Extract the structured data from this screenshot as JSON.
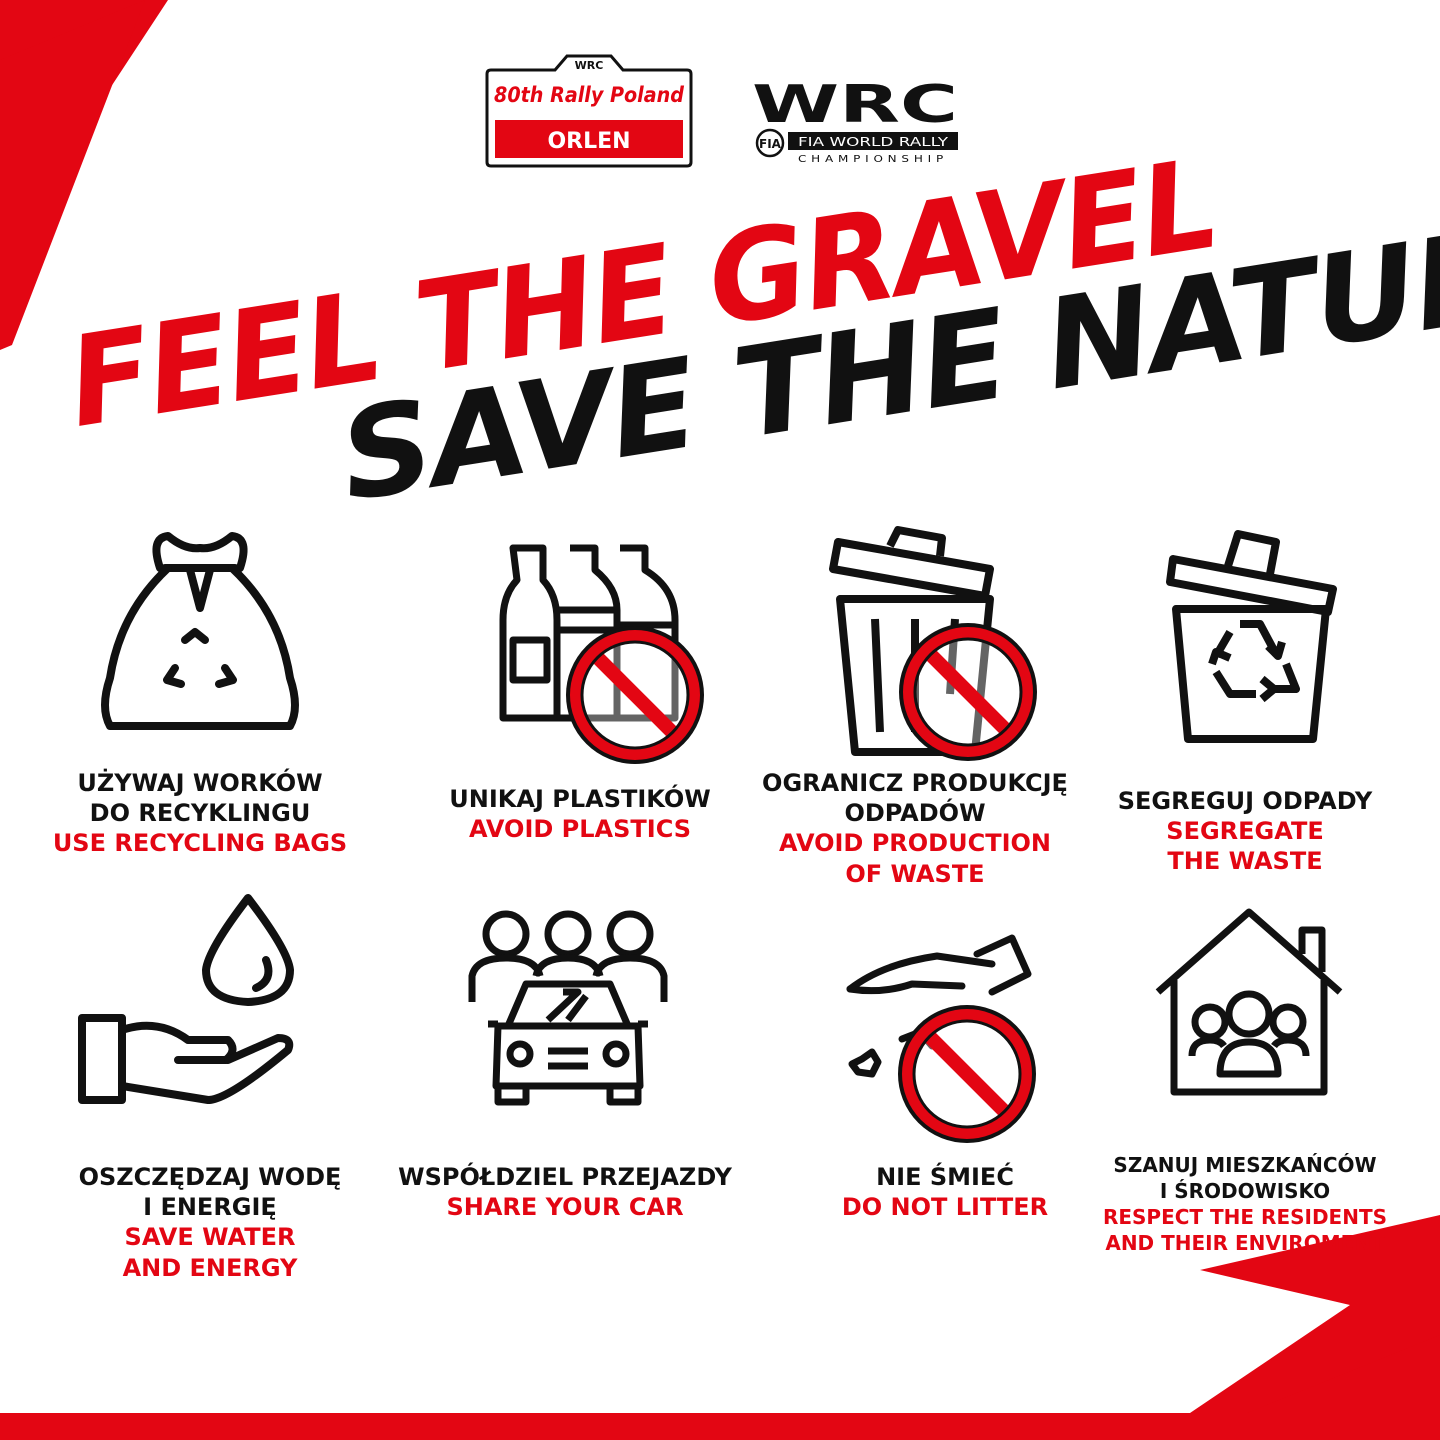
{
  "colors": {
    "accent": "#e30613",
    "ink": "#111111",
    "background": "#ffffff"
  },
  "logos": {
    "rally": {
      "badge": "WRC",
      "line1": "80th Rally Poland",
      "line2": "ORLEN"
    },
    "wrc": {
      "mark": "WRC",
      "tagline1": "FIA WORLD RALLY",
      "tagline2": "CHAMPIONSHIP",
      "fia": "FIA"
    }
  },
  "headline": {
    "line1": "FEEL THE GRAVEL",
    "line2": "SAVE THE NATURE"
  },
  "tips": [
    {
      "icon": "recycling-bag-icon",
      "pl": [
        "UŻYWAJ WORKÓW",
        "DO RECYKLINGU"
      ],
      "en": [
        "USE RECYCLING BAGS"
      ]
    },
    {
      "icon": "no-plastic-bottles-icon",
      "pl": [
        "UNIKAJ PLASTIKÓW"
      ],
      "en": [
        "AVOID PLASTICS"
      ]
    },
    {
      "icon": "no-trash-can-icon",
      "pl": [
        "OGRANICZ PRODUKCJĘ",
        "ODPADÓW"
      ],
      "en": [
        "AVOID PRODUCTION",
        "OF WASTE"
      ]
    },
    {
      "icon": "recycle-bin-icon",
      "pl": [
        "SEGREGUJ ODPADY"
      ],
      "en": [
        "SEGREGATE",
        "THE WASTE"
      ]
    },
    {
      "icon": "water-drop-hand-icon",
      "pl": [
        "OSZCZĘDZAJ WODĘ",
        "I ENERGIĘ"
      ],
      "en": [
        "SAVE WATER",
        "AND ENERGY"
      ]
    },
    {
      "icon": "carpool-icon",
      "pl": [
        "WSPÓŁDZIEL PRZEJAZDY"
      ],
      "en": [
        "SHARE YOUR CAR"
      ]
    },
    {
      "icon": "no-littering-icon",
      "pl": [
        "NIE ŚMIEĆ"
      ],
      "en": [
        "DO NOT LITTER"
      ]
    },
    {
      "icon": "house-residents-icon",
      "pl": [
        "SZANUJ MIESZKAŃCÓW",
        "I ŚRODOWISKO"
      ],
      "en": [
        "RESPECT THE RESIDENTS",
        "AND THEIR ENVIROMENT"
      ]
    }
  ]
}
